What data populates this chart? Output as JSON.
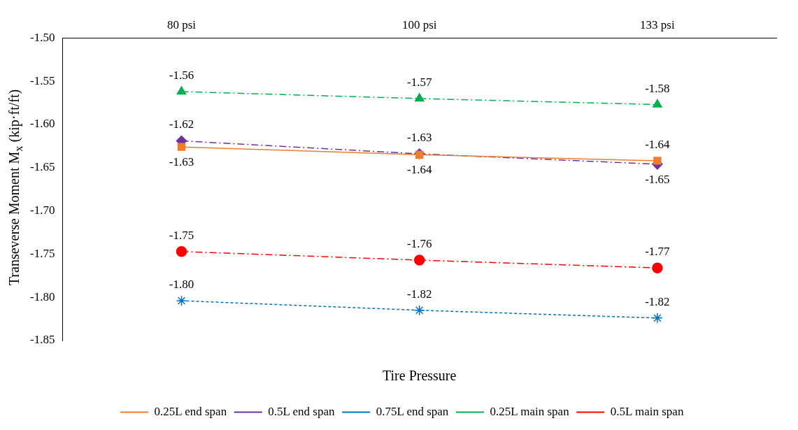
{
  "chart_data": {
    "type": "line",
    "xlabel": "Tire Pressure",
    "ylabel": "Transeverse Moment M$_{x}$ (kip·ft/ft)",
    "categories": [
      "80 psi",
      "100 psi",
      "133 psi"
    ],
    "ylim": [
      -1.85,
      -1.5
    ],
    "yticks": [
      {
        "value": -1.85,
        "label": "-1.85"
      },
      {
        "value": -1.8,
        "label": "-1.80"
      },
      {
        "value": -1.75,
        "label": "-1.75"
      },
      {
        "value": -1.7,
        "label": "-1.70"
      },
      {
        "value": -1.65,
        "label": "-1.65"
      },
      {
        "value": -1.6,
        "label": "-1.60"
      },
      {
        "value": -1.55,
        "label": "-1.55"
      },
      {
        "value": -1.5,
        "label": "-1.50"
      }
    ],
    "grid": false,
    "legend": "bottom",
    "series": [
      {
        "name": "0.25L end span",
        "color": "#ed7d31",
        "values": [
          -1.626,
          -1.635,
          -1.642
        ],
        "value_labels": [
          "-1.63",
          "-1.64",
          "-1.64"
        ],
        "marker": "square",
        "line_style": "solid"
      },
      {
        "name": "0.5L end span",
        "color": "#7030a0",
        "values": [
          -1.619,
          -1.634,
          -1.646
        ],
        "value_labels": [
          "-1.62",
          "-1.63",
          "-1.65"
        ],
        "marker": "diamond",
        "line_style": "dashed"
      },
      {
        "name": "0.75L end span",
        "color": "#0070c0",
        "values": [
          -1.804,
          -1.815,
          -1.824
        ],
        "value_labels": [
          "-1.80",
          "-1.82",
          "-1.82"
        ],
        "marker": "cross",
        "line_style": "dotted"
      },
      {
        "name": "0.25L main span",
        "color": "#00b050",
        "values": [
          -1.562,
          -1.57,
          -1.577
        ],
        "value_labels": [
          "-1.56",
          "-1.57",
          "-1.58"
        ],
        "marker": "triangle",
        "line_style": "dashed"
      },
      {
        "name": "0.5L main span",
        "color": "#ff0000",
        "values": [
          -1.747,
          -1.757,
          -1.766
        ],
        "value_labels": [
          "-1.75",
          "-1.76",
          "-1.77"
        ],
        "marker": "circle",
        "line_style": "dashed"
      }
    ]
  }
}
